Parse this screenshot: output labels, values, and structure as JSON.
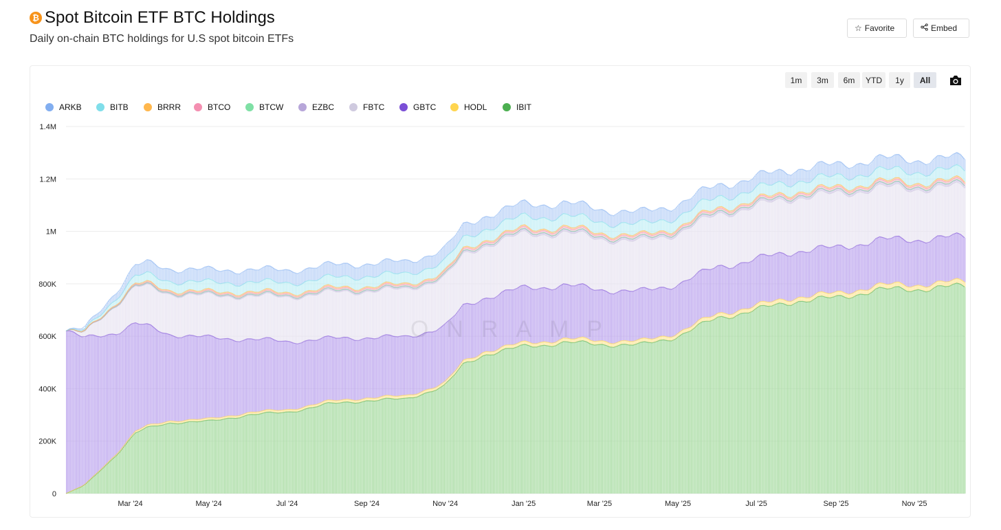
{
  "header": {
    "title": "Spot Bitcoin ETF BTC Holdings",
    "subtitle": "Daily on-chain BTC holdings for U.S spot bitcoin ETFs",
    "logo_glyph": "₿",
    "favorite_label": "Favorite",
    "embed_label": "Embed"
  },
  "range_buttons": [
    "1m",
    "3m",
    "6m",
    "YTD",
    "1y",
    "All"
  ],
  "active_range": "All",
  "watermark": "ONRAMP",
  "chart_data": {
    "type": "bar",
    "stacked": true,
    "title": "Spot Bitcoin ETF BTC Holdings",
    "xlabel": "",
    "ylabel": "",
    "ylim": [
      0,
      1400000
    ],
    "y_ticks": [
      0,
      200000,
      400000,
      600000,
      800000,
      1000000,
      1200000,
      1400000
    ],
    "y_tick_labels": [
      "0",
      "200K",
      "400K",
      "600K",
      "800K",
      "1M",
      "1.2M",
      "1.4M"
    ],
    "x_tick_labels": [
      "Mar '24",
      "May '24",
      "Jul '24",
      "Sep '24",
      "Nov '24",
      "Jan '25",
      "Mar '25",
      "May '25",
      "Jul '25",
      "Sep '25",
      "Nov '25"
    ],
    "x_tick_dates": [
      "2024-03-01",
      "2024-05-01",
      "2024-07-01",
      "2024-09-01",
      "2024-11-01",
      "2025-01-01",
      "2025-03-01",
      "2025-05-01",
      "2025-07-01",
      "2025-09-01",
      "2025-11-01"
    ],
    "date_range": [
      "2024-01-11",
      "2025-12-10"
    ],
    "anchor_dates": [
      "2024-01-11",
      "2024-01-25",
      "2024-02-05",
      "2024-02-20",
      "2024-03-05",
      "2024-03-14",
      "2024-04-01",
      "2024-05-01",
      "2024-06-01",
      "2024-07-01",
      "2024-08-01",
      "2024-09-01",
      "2024-10-01",
      "2024-11-01",
      "2024-11-15",
      "2024-12-01",
      "2025-01-01",
      "2025-02-01",
      "2025-03-01",
      "2025-04-01",
      "2025-05-01",
      "2025-06-01",
      "2025-07-01",
      "2025-08-01",
      "2025-09-01",
      "2025-10-01",
      "2025-11-01",
      "2025-12-10"
    ],
    "series": [
      {
        "name": "IBIT",
        "color": "#4caf50",
        "fill": "#a6dba0",
        "values": [
          0,
          30000,
          80000,
          150000,
          230000,
          250000,
          270000,
          275000,
          300000,
          310000,
          340000,
          355000,
          360000,
          410000,
          490000,
          530000,
          560000,
          575000,
          570000,
          565000,
          600000,
          670000,
          700000,
          735000,
          745000,
          775000,
          780000,
          790000
        ]
      },
      {
        "name": "HODL",
        "color": "#ffd54f",
        "fill": "#ffe79a",
        "values": [
          0,
          1500,
          3000,
          5000,
          7000,
          7500,
          8000,
          8500,
          9000,
          9500,
          10000,
          10500,
          11000,
          11500,
          12000,
          12500,
          13000,
          13500,
          14000,
          14000,
          14500,
          15000,
          15500,
          16000,
          16500,
          17000,
          17500,
          18000
        ]
      },
      {
        "name": "GBTC",
        "color": "#7b4fd6",
        "fill": "#bda6ee",
        "values": [
          620000,
          560000,
          520000,
          460000,
          410000,
          380000,
          330000,
          310000,
          280000,
          260000,
          240000,
          230000,
          225000,
          215000,
          210000,
          205000,
          210000,
          205000,
          195000,
          190000,
          185000,
          180000,
          177000,
          175000,
          174000,
          173000,
          172000,
          170000
        ]
      },
      {
        "name": "FBTC",
        "color": "#cfcadf",
        "fill": "#e8e4f1",
        "values": [
          0,
          20000,
          60000,
          110000,
          140000,
          150000,
          155000,
          160000,
          165000,
          170000,
          175000,
          178000,
          182000,
          188000,
          195000,
          200000,
          205000,
          200000,
          195000,
          190000,
          195000,
          200000,
          203000,
          205000,
          205000,
          200000,
          195000,
          190000
        ]
      },
      {
        "name": "EZBC",
        "color": "#b7a6d9",
        "fill": "#d6cbea",
        "values": [
          0,
          500,
          1000,
          2000,
          3000,
          3500,
          3800,
          4000,
          4200,
          4500,
          4800,
          5000,
          5200,
          5500,
          6000,
          6500,
          7000,
          7200,
          7300,
          7400,
          7500,
          7600,
          7700,
          7800,
          7900,
          8000,
          8100,
          8200
        ]
      },
      {
        "name": "BTCW",
        "color": "#7fe0a5",
        "fill": "#c2efd2",
        "values": [
          0,
          200,
          400,
          600,
          800,
          900,
          1000,
          1000,
          1100,
          1100,
          1200,
          1200,
          1300,
          1300,
          1400,
          1400,
          1500,
          1500,
          1500,
          1500,
          1500,
          1600,
          1600,
          1600,
          1600,
          1600,
          1600,
          1600
        ]
      },
      {
        "name": "BTCO",
        "color": "#f48fb1",
        "fill": "#f9c3d5",
        "values": [
          0,
          500,
          1000,
          2000,
          3000,
          3500,
          4000,
          4500,
          5000,
          5000,
          5500,
          6000,
          6000,
          6500,
          7000,
          7000,
          7500,
          7500,
          7500,
          7500,
          7500,
          7500,
          7500,
          7500,
          7500,
          7500,
          7500,
          7500
        ]
      },
      {
        "name": "BRRR",
        "color": "#ffb74d",
        "fill": "#ffd49c",
        "values": [
          0,
          1000,
          2000,
          3000,
          4000,
          4500,
          5000,
          5000,
          5200,
          5200,
          5300,
          5300,
          5400,
          5400,
          5500,
          5500,
          5600,
          5600,
          5600,
          5600,
          5700,
          5700,
          5800,
          5800,
          5800,
          5900,
          5900,
          6000
        ]
      },
      {
        "name": "BITB",
        "color": "#80deea",
        "fill": "#c3eff5",
        "values": [
          0,
          5000,
          10000,
          20000,
          30000,
          33000,
          35000,
          36000,
          37000,
          38000,
          39000,
          40000,
          40000,
          41000,
          42000,
          43000,
          44000,
          44000,
          43000,
          42000,
          42000,
          42000,
          42000,
          41000,
          41000,
          42000,
          42000,
          42000
        ]
      },
      {
        "name": "ARKB",
        "color": "#82aef0",
        "fill": "#bcd3f7",
        "values": [
          0,
          8000,
          15000,
          25000,
          40000,
          45000,
          47000,
          47000,
          48000,
          48000,
          48000,
          47000,
          47000,
          48000,
          49000,
          49000,
          49000,
          48000,
          47000,
          46000,
          46000,
          46000,
          46000,
          46000,
          46000,
          45000,
          45000,
          45000
        ]
      }
    ]
  }
}
